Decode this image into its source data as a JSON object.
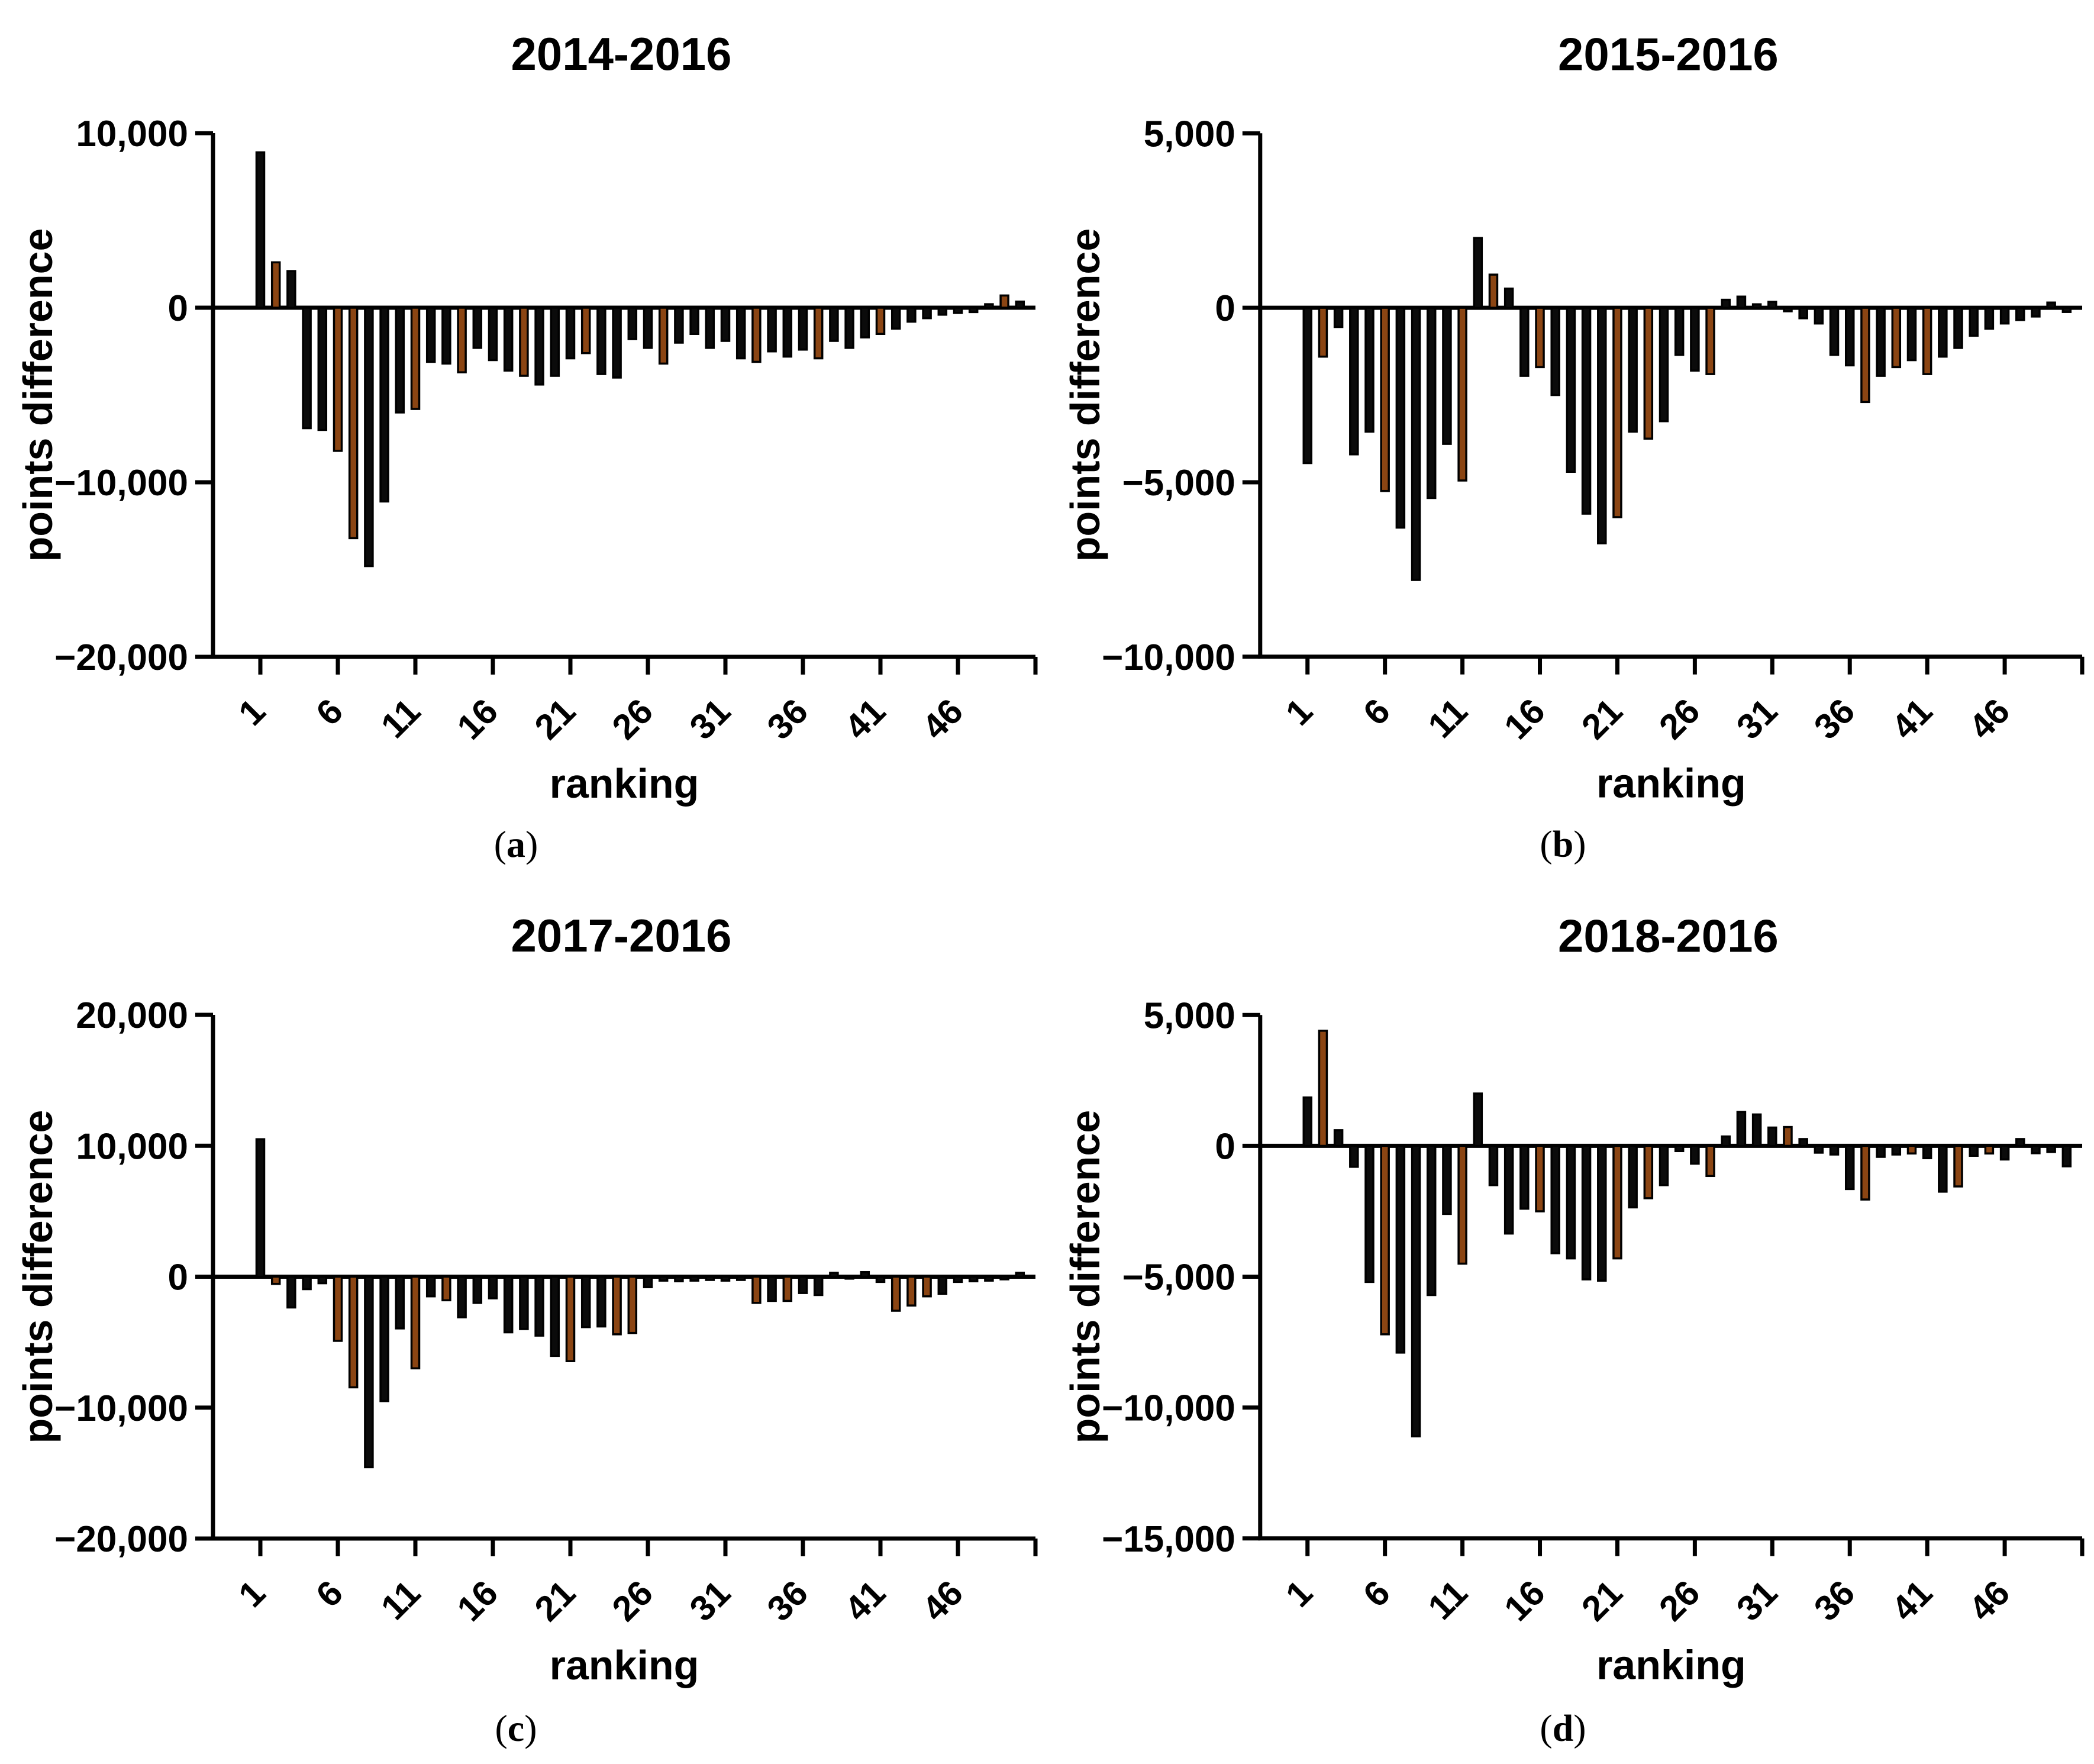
{
  "figure": {
    "ylabel": "points difference",
    "xlabel": "ranking",
    "colors": {
      "bar_black": "#0b0b0b",
      "bar_brown": "#8b4513",
      "axis": "#000000"
    }
  },
  "chart_data": [
    {
      "id": "a",
      "type": "bar",
      "title": "2014-2016",
      "xlabel": "ranking",
      "ylabel": "points difference",
      "sublabel": {
        "open": "(",
        "letter": "a",
        "close": ")"
      },
      "ylim": [
        -20000,
        10000
      ],
      "grid": false,
      "y_ticks": [
        {
          "v": 10000,
          "label": "10,000"
        },
        {
          "v": 0,
          "label": "0"
        },
        {
          "v": -10000,
          "label": "−10,000"
        },
        {
          "v": -20000,
          "label": "−20,000"
        }
      ],
      "x_ticks": [
        {
          "v": 1,
          "label": "1"
        },
        {
          "v": 6,
          "label": "6"
        },
        {
          "v": 11,
          "label": "11"
        },
        {
          "v": 16,
          "label": "16"
        },
        {
          "v": 21,
          "label": "21"
        },
        {
          "v": 26,
          "label": "26"
        },
        {
          "v": 31,
          "label": "31"
        },
        {
          "v": 36,
          "label": "36"
        },
        {
          "v": 41,
          "label": "41"
        },
        {
          "v": 46,
          "label": "46"
        }
      ],
      "values": [
        8900,
        2600,
        2100,
        -6900,
        -7000,
        -8200,
        -13200,
        -14800,
        -11100,
        -6000,
        -5800,
        -3100,
        -3200,
        -3700,
        -2300,
        -3000,
        -3600,
        -3900,
        -4400,
        -3900,
        -2900,
        -2600,
        -3800,
        -4000,
        -1800,
        -2300,
        -3200,
        -2000,
        -1500,
        -2300,
        -1900,
        -2900,
        -3100,
        -2500,
        -2800,
        -2400,
        -2900,
        -1900,
        -2300,
        -1700,
        -1500,
        -1200,
        -800,
        -600,
        -400,
        -300,
        -250,
        200,
        700,
        350
      ],
      "brown_ranks": [
        2,
        6,
        7,
        11,
        14,
        18,
        22,
        27,
        33,
        37,
        41,
        49
      ]
    },
    {
      "id": "b",
      "type": "bar",
      "title": "2015-2016",
      "xlabel": "ranking",
      "ylabel": "points difference",
      "sublabel": {
        "open": "(",
        "letter": "b",
        "close": ")"
      },
      "ylim": [
        -10000,
        5000
      ],
      "grid": false,
      "y_ticks": [
        {
          "v": 5000,
          "label": "5,000"
        },
        {
          "v": 0,
          "label": "0"
        },
        {
          "v": -5000,
          "label": "−5,000"
        },
        {
          "v": -10000,
          "label": "−10,000"
        }
      ],
      "x_ticks": [
        {
          "v": 1,
          "label": "1"
        },
        {
          "v": 6,
          "label": "6"
        },
        {
          "v": 11,
          "label": "11"
        },
        {
          "v": 16,
          "label": "16"
        },
        {
          "v": 21,
          "label": "21"
        },
        {
          "v": 26,
          "label": "26"
        },
        {
          "v": 31,
          "label": "31"
        },
        {
          "v": 36,
          "label": "36"
        },
        {
          "v": 41,
          "label": "41"
        },
        {
          "v": 46,
          "label": "46"
        }
      ],
      "values": [
        -4450,
        -1400,
        -550,
        -4200,
        -3550,
        -5250,
        -6300,
        -7800,
        -5450,
        -3900,
        -4950,
        2000,
        950,
        550,
        -1950,
        -1700,
        -2500,
        -4700,
        -5900,
        -6750,
        -6000,
        -3550,
        -3750,
        -3250,
        -1350,
        -1800,
        -1900,
        230,
        320,
        100,
        170,
        -100,
        -300,
        -450,
        -1350,
        -1650,
        -2700,
        -1950,
        -1700,
        -1500,
        -1900,
        -1400,
        -1150,
        -800,
        -600,
        -450,
        -350,
        -250,
        150,
        -120
      ],
      "brown_ranks": [
        2,
        6,
        11,
        13,
        16,
        21,
        23,
        27,
        37,
        39,
        41
      ]
    },
    {
      "id": "c",
      "type": "bar",
      "title": "2017-2016",
      "xlabel": "ranking",
      "ylabel": "points difference",
      "sublabel": {
        "open": "(",
        "letter": "c",
        "close": ")"
      },
      "ylim": [
        -20000,
        20000
      ],
      "grid": false,
      "y_ticks": [
        {
          "v": 20000,
          "label": "20,000"
        },
        {
          "v": 10000,
          "label": "10,000"
        },
        {
          "v": 0,
          "label": "0"
        },
        {
          "v": -10000,
          "label": "−10,000"
        },
        {
          "v": -20000,
          "label": "−20,000"
        }
      ],
      "x_ticks": [
        {
          "v": 1,
          "label": "1"
        },
        {
          "v": 6,
          "label": "6"
        },
        {
          "v": 11,
          "label": "11"
        },
        {
          "v": 16,
          "label": "16"
        },
        {
          "v": 21,
          "label": "21"
        },
        {
          "v": 26,
          "label": "26"
        },
        {
          "v": 31,
          "label": "31"
        },
        {
          "v": 36,
          "label": "36"
        },
        {
          "v": 41,
          "label": "41"
        },
        {
          "v": 46,
          "label": "46"
        }
      ],
      "values": [
        10500,
        -550,
        -2350,
        -950,
        -500,
        -4900,
        -8450,
        -14550,
        -9500,
        -3950,
        -7000,
        -1500,
        -1800,
        -3100,
        -2000,
        -1650,
        -4250,
        -4000,
        -4500,
        -6050,
        -6450,
        -3850,
        -3800,
        -4400,
        -4300,
        -800,
        -300,
        -350,
        -300,
        -250,
        -300,
        -250,
        -2000,
        -1850,
        -1850,
        -1250,
        -1400,
        300,
        -150,
        350,
        -400,
        -2600,
        -2200,
        -1500,
        -1300,
        -400,
        -350,
        -300,
        -200,
        300
      ],
      "brown_ranks": [
        2,
        6,
        7,
        11,
        13,
        21,
        24,
        25,
        33,
        35,
        42,
        43,
        44
      ]
    },
    {
      "id": "d",
      "type": "bar",
      "title": "2018-2016",
      "xlabel": "ranking",
      "ylabel": "points difference",
      "sublabel": {
        "open": "(",
        "letter": "d",
        "close": ")"
      },
      "ylim": [
        -15000,
        5000
      ],
      "grid": false,
      "y_ticks": [
        {
          "v": 5000,
          "label": "5,000"
        },
        {
          "v": 0,
          "label": "0"
        },
        {
          "v": -5000,
          "label": "−5,000"
        },
        {
          "v": -10000,
          "label": "−10,000"
        },
        {
          "v": -15000,
          "label": "−15,000"
        }
      ],
      "x_ticks": [
        {
          "v": 1,
          "label": "1"
        },
        {
          "v": 6,
          "label": "6"
        },
        {
          "v": 11,
          "label": "11"
        },
        {
          "v": 16,
          "label": "16"
        },
        {
          "v": 21,
          "label": "21"
        },
        {
          "v": 26,
          "label": "26"
        },
        {
          "v": 31,
          "label": "31"
        },
        {
          "v": 36,
          "label": "36"
        },
        {
          "v": 41,
          "label": "41"
        },
        {
          "v": 46,
          "label": "46"
        }
      ],
      "values": [
        1850,
        4400,
        600,
        -800,
        -5200,
        -7200,
        -7900,
        -11100,
        -5700,
        -2600,
        -4500,
        2000,
        -1500,
        -3350,
        -2400,
        -2500,
        -4100,
        -4300,
        -5100,
        -5150,
        -4300,
        -2350,
        -2000,
        -1500,
        -200,
        -680,
        -1150,
        360,
        1300,
        1200,
        700,
        720,
        260,
        -260,
        -330,
        -1650,
        -2050,
        -420,
        -330,
        -290,
        -470,
        -1750,
        -1550,
        -380,
        -290,
        -520,
        260,
        -280,
        -230,
        -780
      ],
      "brown_ranks": [
        2,
        6,
        11,
        16,
        21,
        23,
        27,
        32,
        37,
        40,
        43,
        45
      ]
    }
  ]
}
